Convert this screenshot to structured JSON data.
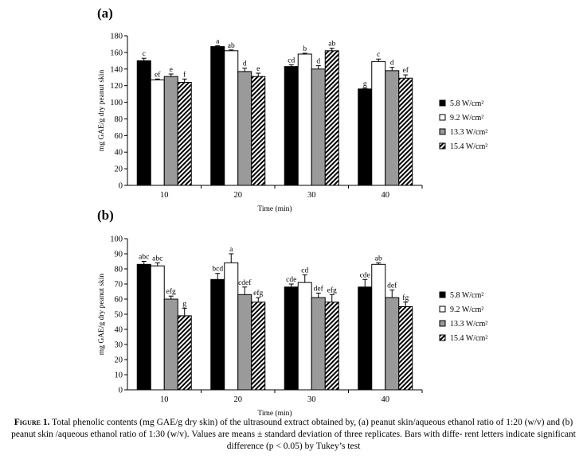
{
  "colors": {
    "s0": "#000000",
    "s1": "#ffffff",
    "s2": "#9a9a9a",
    "s3": "hatch"
  },
  "caption": {
    "label": "Figure 1.",
    "text": "Total phenolic contents (mg GAE/g dry skin) of the ultrasound extract obtained by, (a) peanut skin/aqueous ethanol ratio of 1:20 (w/v) and (b) peanut skin /aqueous ethanol ratio of 1:30 (w/v). Values are means ± standard deviation of three replicates. Bars with diffe- rent letters indicate significant difference (p < 0.05) by Tukey’s test"
  },
  "chart_data": [
    {
      "type": "bar",
      "panel_label": "(a)",
      "xlabel": "Time  (min)",
      "ylabel": "mg GAE/g  dry peanut skin",
      "categories": [
        "10",
        "20",
        "30",
        "40"
      ],
      "ylim": [
        0,
        180
      ],
      "yticks": [
        0,
        20,
        40,
        60,
        80,
        100,
        120,
        140,
        160,
        180
      ],
      "grid": false,
      "legend_position": "right",
      "series": [
        {
          "name": "5.8 W/cm²",
          "values": [
            150,
            167,
            143,
            116
          ],
          "errors": [
            3,
            1,
            2,
            1
          ],
          "letters": [
            "c",
            "a",
            "cd",
            "g"
          ]
        },
        {
          "name": "9.2 W/cm²",
          "values": [
            127,
            162,
            158,
            149
          ],
          "errors": [
            1,
            1,
            1,
            3
          ],
          "letters": [
            "ef",
            "ab",
            "b",
            "c"
          ]
        },
        {
          "name": "13.3 W/cm²",
          "values": [
            131,
            137,
            140,
            138
          ],
          "errors": [
            3,
            4,
            4,
            4
          ],
          "letters": [
            "e",
            "d",
            "d",
            "d"
          ]
        },
        {
          "name": "15.4 W/cm²",
          "values": [
            124,
            131,
            162,
            129
          ],
          "errors": [
            4,
            4,
            3,
            4
          ],
          "letters": [
            "f",
            "e",
            "ab",
            "ef"
          ]
        }
      ]
    },
    {
      "type": "bar",
      "panel_label": "(b)",
      "xlabel": "Time  (min)",
      "ylabel": "mg GAE/g  dry peanut skin",
      "categories": [
        "10",
        "20",
        "30",
        "40"
      ],
      "ylim": [
        0,
        100
      ],
      "yticks": [
        0,
        10,
        20,
        30,
        40,
        50,
        60,
        70,
        80,
        90,
        100
      ],
      "grid": false,
      "legend_position": "right",
      "series": [
        {
          "name": "5.8 W/cm²",
          "values": [
            83,
            73,
            68,
            68
          ],
          "errors": [
            2,
            4,
            2,
            5
          ],
          "letters": [
            "abc",
            "bcd",
            "cde",
            "cde"
          ]
        },
        {
          "name": "9.2 W/cm²",
          "values": [
            82,
            84,
            71,
            83
          ],
          "errors": [
            2,
            6,
            5,
            1
          ],
          "letters": [
            "abc",
            "a",
            "cd",
            "ab"
          ]
        },
        {
          "name": "13.3 W/cm²",
          "values": [
            60,
            63,
            61,
            61
          ],
          "errors": [
            2,
            5,
            3,
            5
          ],
          "letters": [
            "efg",
            "cdef",
            "def",
            "def"
          ]
        },
        {
          "name": "15.4 W/cm²",
          "values": [
            49,
            58,
            58,
            55
          ],
          "errors": [
            5,
            3,
            5,
            3
          ],
          "letters": [
            "g",
            "efg",
            "efg",
            "fg"
          ]
        }
      ]
    }
  ]
}
